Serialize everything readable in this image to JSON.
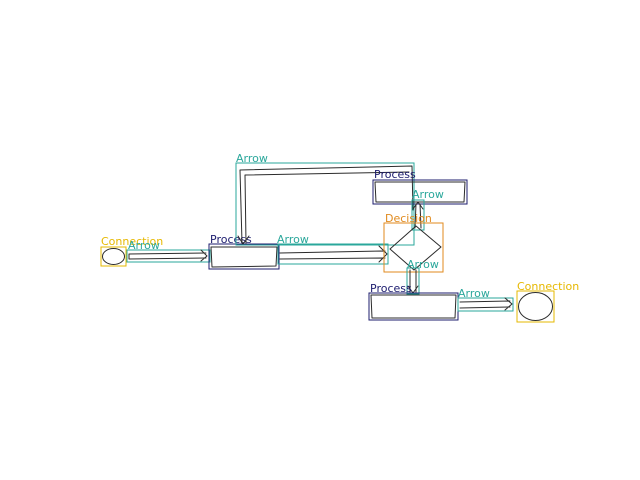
{
  "diagram": {
    "colors": {
      "process": "#1c1c6e",
      "arrow": "#2aa79b",
      "decision": "#e08a1e",
      "connection": "#e6b800",
      "ink": "#2b2b2b",
      "background": "#ffffff"
    },
    "nodes": [
      {
        "id": "connection-left",
        "type": "connection",
        "label": "Connection"
      },
      {
        "id": "process-left",
        "type": "process",
        "label": "Process"
      },
      {
        "id": "process-top",
        "type": "process",
        "label": "Process"
      },
      {
        "id": "decision",
        "type": "decision",
        "label": "Decision"
      },
      {
        "id": "process-bottom",
        "type": "process",
        "label": "Process"
      },
      {
        "id": "connection-right",
        "type": "connection",
        "label": "Connection"
      }
    ],
    "edges": [
      {
        "id": "arrow-connection-to-process",
        "label": "Arrow"
      },
      {
        "id": "arrow-process-to-decision",
        "label": "Arrow"
      },
      {
        "id": "arrow-loop-top",
        "label": "Arrow"
      },
      {
        "id": "arrow-decision-to-process-top",
        "label": "Arrow"
      },
      {
        "id": "arrow-decision-to-process-bottom",
        "label": "Arrow"
      },
      {
        "id": "arrow-process-to-connection",
        "label": "Arrow"
      }
    ]
  }
}
